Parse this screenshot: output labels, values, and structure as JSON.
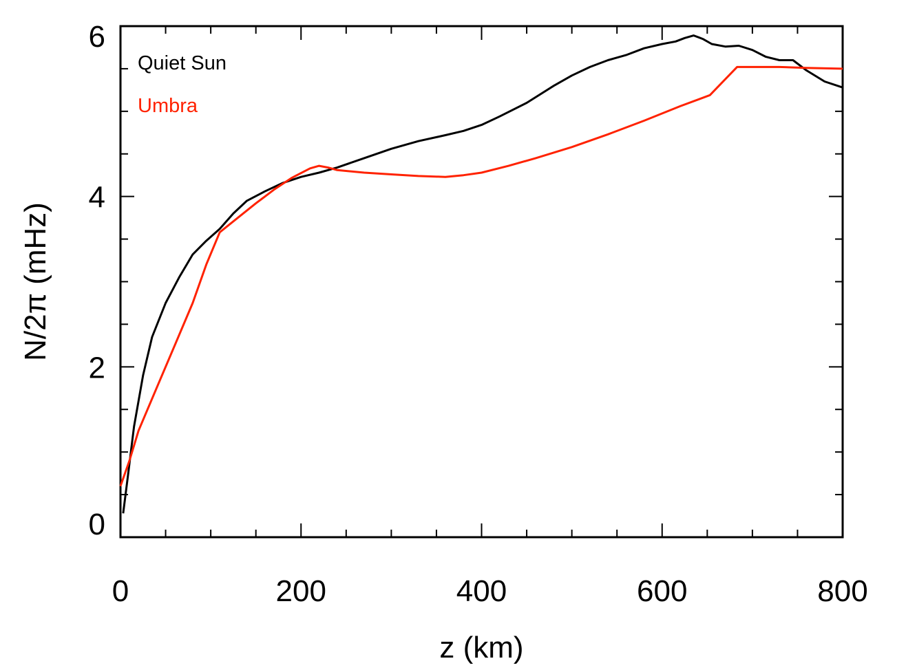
{
  "chart_data": {
    "type": "line",
    "title": "",
    "xlabel": "z (km)",
    "ylabel": "N/2π (mHz)",
    "xlim": [
      0,
      800
    ],
    "ylim": [
      0,
      6
    ],
    "xticks": [
      0,
      200,
      400,
      600,
      800
    ],
    "xtick_labels": [
      "0",
      "200",
      "400",
      "600",
      "800"
    ],
    "yticks": [
      0,
      2,
      4,
      6
    ],
    "ytick_labels": [
      "0",
      "2",
      "4",
      "6"
    ],
    "grid": false,
    "legend": "top-left",
    "series": [
      {
        "name": "Quiet Sun",
        "color": "#000000",
        "x": [
          3,
          8,
          15,
          25,
          35,
          50,
          65,
          80,
          95,
          110,
          125,
          140,
          160,
          180,
          200,
          220,
          240,
          270,
          300,
          330,
          360,
          380,
          400,
          420,
          450,
          480,
          500,
          520,
          540,
          560,
          580,
          600,
          615,
          625,
          635,
          645,
          655,
          670,
          685,
          700,
          715,
          730,
          745,
          760,
          780,
          800
        ],
        "y": [
          0.28,
          0.7,
          1.3,
          1.9,
          2.35,
          2.75,
          3.05,
          3.32,
          3.48,
          3.62,
          3.8,
          3.95,
          4.06,
          4.16,
          4.23,
          4.28,
          4.34,
          4.45,
          4.56,
          4.65,
          4.72,
          4.77,
          4.84,
          4.94,
          5.1,
          5.3,
          5.42,
          5.52,
          5.6,
          5.66,
          5.74,
          5.79,
          5.82,
          5.86,
          5.89,
          5.85,
          5.79,
          5.76,
          5.77,
          5.72,
          5.64,
          5.6,
          5.6,
          5.48,
          5.35,
          5.28
        ]
      },
      {
        "name": "Umbra",
        "color": "#ff2200",
        "x": [
          0,
          10,
          20,
          40,
          60,
          80,
          95,
          110,
          130,
          150,
          170,
          190,
          210,
          220,
          230,
          240,
          270,
          300,
          330,
          360,
          380,
          400,
          430,
          460,
          500,
          540,
          580,
          620,
          653,
          683,
          700,
          730,
          760,
          800
        ],
        "y": [
          0.6,
          0.9,
          1.25,
          1.75,
          2.25,
          2.75,
          3.2,
          3.58,
          3.75,
          3.92,
          4.08,
          4.22,
          4.33,
          4.36,
          4.34,
          4.31,
          4.28,
          4.26,
          4.24,
          4.23,
          4.25,
          4.28,
          4.36,
          4.45,
          4.58,
          4.73,
          4.89,
          5.06,
          5.19,
          5.52,
          5.52,
          5.52,
          5.51,
          5.5
        ]
      }
    ]
  }
}
